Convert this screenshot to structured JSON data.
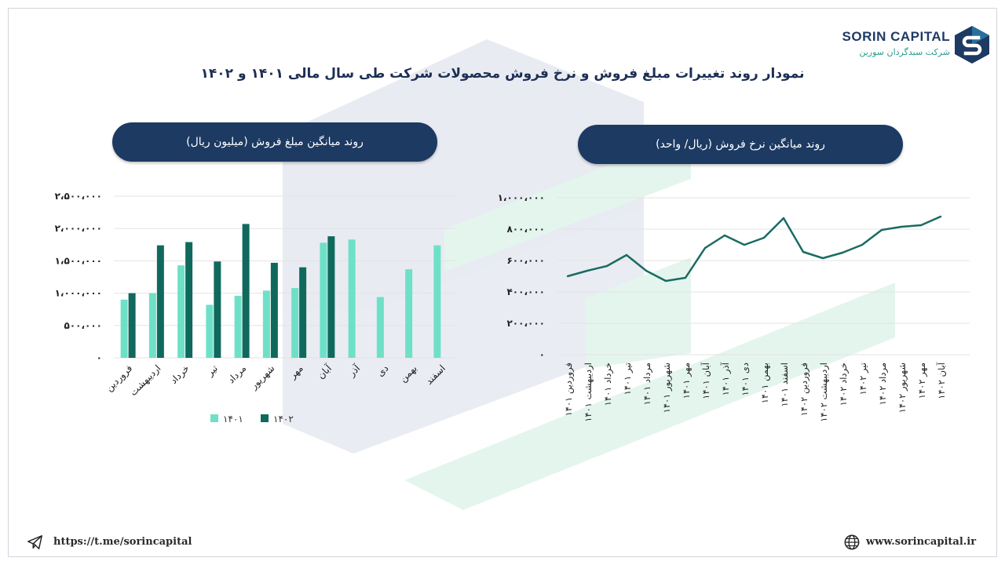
{
  "brand": {
    "name_en": "SORIN CAPITAL",
    "name_fa": "شرکت سبدگردان سورین",
    "accent_dark": "#1c3a62",
    "accent_teal": "#2a9d8f"
  },
  "title": "نمودار روند تغییرات مبلغ فروش و نرخ فروش محصولات شرکت طی سال مالی ۱۴۰۱ و ۱۴۰۲",
  "footer": {
    "telegram": "https://t.me/sorincapital",
    "website": "www.sorincapital.ir",
    "telegram_icon": "telegram-icon",
    "website_icon": "globe-icon"
  },
  "chart_data": [
    {
      "type": "bar",
      "title": "روند میانگین مبلغ فروش (میلیون ریال)",
      "categories": [
        "فروردین",
        "اردیبهشت",
        "خرداد",
        "تیر",
        "مرداد",
        "شهریور",
        "مهر",
        "آبان",
        "آذر",
        "دی",
        "بهمن",
        "اسفند"
      ],
      "series": [
        {
          "name": "۱۴۰۱",
          "color": "#6fe0c8",
          "values": [
            900000,
            1000000,
            1430000,
            820000,
            960000,
            1040000,
            1080000,
            1780000,
            1830000,
            940000,
            1370000,
            1740000
          ]
        },
        {
          "name": "۱۴۰۲",
          "color": "#10695d",
          "values": [
            1000000,
            1740000,
            1790000,
            1490000,
            2070000,
            1470000,
            1400000,
            1880000,
            null,
            null,
            null,
            null
          ]
        }
      ],
      "ylim": [
        0,
        2500000
      ],
      "yticks": [
        0,
        500000,
        1000000,
        1500000,
        2000000,
        2500000
      ],
      "ytick_labels": [
        "۰",
        "۵۰۰،۰۰۰",
        "۱،۰۰۰،۰۰۰",
        "۱،۵۰۰،۰۰۰",
        "۲،۰۰۰،۰۰۰",
        "۲،۵۰۰،۰۰۰"
      ],
      "grid": true,
      "legend": "bottom"
    },
    {
      "type": "line",
      "title": "روند میانگین نرخ فروش (ریال/ واحد)",
      "categories": [
        "فروردین ۱۴۰۱",
        "اردیبهشت ۱۴۰۱",
        "خرداد ۱۴۰۱",
        "تیر ۱۴۰۱",
        "مرداد ۱۴۰۱",
        "شهریور ۱۴۰۱",
        "مهر ۱۴۰۱",
        "آبان ۱۴۰۱",
        "آذر ۱۴۰۱",
        "دی ۱۴۰۱",
        "بهمن ۱۴۰۱",
        "اسفند ۱۴۰۱",
        "فروردین ۱۴۰۲",
        "اردیبهشت ۱۴۰۲",
        "خرداد ۱۴۰۲",
        "تیر ۱۴۰۲",
        "مرداد ۱۴۰۲",
        "شهریور ۱۴۰۲",
        "مهر ۱۴۰۲",
        "آبان ۱۴۰۲"
      ],
      "series": [
        {
          "color": "#1a6b62",
          "values": [
            500000,
            535000,
            565000,
            635000,
            535000,
            470000,
            490000,
            680000,
            760000,
            700000,
            745000,
            870000,
            655000,
            615000,
            650000,
            700000,
            795000,
            815000,
            825000,
            880000
          ]
        }
      ],
      "ylim": [
        0,
        1000000
      ],
      "yticks": [
        0,
        200000,
        400000,
        600000,
        800000,
        1000000
      ],
      "ytick_labels": [
        "۰",
        "۲۰۰،۰۰۰",
        "۴۰۰،۰۰۰",
        "۶۰۰،۰۰۰",
        "۸۰۰،۰۰۰",
        "۱،۰۰۰،۰۰۰"
      ],
      "grid": true,
      "legend": "none"
    }
  ]
}
